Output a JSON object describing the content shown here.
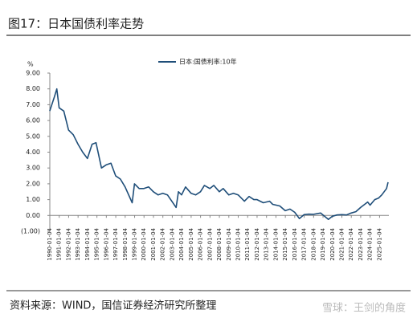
{
  "title": "图17：日本国债利率走势",
  "source": "资料来源：WIND，国信证券经济研究所整理",
  "watermark": "雪球：王剑的角度",
  "chart_data": {
    "type": "line",
    "y_unit": "%",
    "x": [
      "1990-01",
      "1990-07",
      "1990-10",
      "1991-01",
      "1991-07",
      "1992-01",
      "1992-07",
      "1993-01",
      "1993-07",
      "1994-01",
      "1994-07",
      "1994-12",
      "1995-07",
      "1996-01",
      "1996-07",
      "1997-01",
      "1997-07",
      "1998-01",
      "1998-10",
      "1999-01",
      "1999-07",
      "2000-01",
      "2000-07",
      "2001-01",
      "2001-07",
      "2002-01",
      "2002-07",
      "2003-06",
      "2003-09",
      "2004-01",
      "2004-06",
      "2005-01",
      "2005-07",
      "2006-01",
      "2006-06",
      "2007-01",
      "2007-06",
      "2008-01",
      "2008-06",
      "2009-01",
      "2009-07",
      "2010-01",
      "2010-09",
      "2011-03",
      "2011-09",
      "2012-01",
      "2012-09",
      "2013-05",
      "2013-09",
      "2014-06",
      "2015-01",
      "2015-07",
      "2016-01",
      "2016-07",
      "2017-01",
      "2017-07",
      "2018-01",
      "2018-10",
      "2019-08",
      "2020-01",
      "2020-07",
      "2021-01",
      "2021-07",
      "2022-01",
      "2022-07",
      "2023-01",
      "2023-10",
      "2024-01",
      "2024-07",
      "2024-12",
      "2025-04",
      "2025-07",
      "2025-10",
      "2025-12"
    ],
    "series": [
      {
        "name": "日本:国债利率:10年",
        "color": "#1f4e79",
        "values": [
          6.6,
          7.5,
          8.0,
          6.8,
          6.6,
          5.4,
          5.1,
          4.5,
          4.0,
          3.6,
          4.5,
          4.6,
          3.0,
          3.2,
          3.3,
          2.5,
          2.3,
          1.8,
          0.8,
          2.0,
          1.7,
          1.7,
          1.8,
          1.5,
          1.3,
          1.4,
          1.3,
          0.5,
          1.5,
          1.3,
          1.8,
          1.4,
          1.3,
          1.5,
          1.9,
          1.7,
          1.9,
          1.5,
          1.7,
          1.3,
          1.4,
          1.3,
          0.9,
          1.2,
          1.0,
          1.0,
          0.8,
          0.9,
          0.7,
          0.6,
          0.3,
          0.4,
          0.2,
          -0.2,
          0.05,
          0.08,
          0.07,
          0.15,
          -0.25,
          -0.05,
          0.03,
          0.05,
          0.03,
          0.15,
          0.24,
          0.5,
          0.85,
          0.65,
          1.0,
          1.1,
          1.3,
          1.5,
          1.7,
          2.1
        ]
      }
    ],
    "xlim": [
      "1990-01-04",
      "2025-12-31"
    ],
    "xticks": [
      "1990-01-04",
      "1991-01-04",
      "1992-01-04",
      "1993-01-04",
      "1994-01-04",
      "1995-01-04",
      "1996-01-04",
      "1997-01-04",
      "1998-01-04",
      "1999-01-04",
      "2000-01-04",
      "2001-01-04",
      "2002-01-04",
      "2003-01-04",
      "2004-01-04",
      "2005-01-04",
      "2006-01-04",
      "2007-01-04",
      "2008-01-04",
      "2009-01-04",
      "2010-01-04",
      "2011-01-04",
      "2012-01-04",
      "2013-01-04",
      "2014-01-04",
      "2015-01-04",
      "2016-01-04",
      "2017-01-04",
      "2018-01-04",
      "2019-01-04",
      "2020-01-04",
      "2021-01-04",
      "2022-01-04",
      "2023-01-04",
      "2024-01-04",
      "2025-01-04"
    ],
    "ylim": [
      -1,
      9
    ],
    "yticks": [
      {
        "value": 9,
        "label": "9.00"
      },
      {
        "value": 8,
        "label": "8.00"
      },
      {
        "value": 7,
        "label": "7.00"
      },
      {
        "value": 6,
        "label": "6.00"
      },
      {
        "value": 5,
        "label": "5.00"
      },
      {
        "value": 4,
        "label": "4.00"
      },
      {
        "value": 3,
        "label": "3.00"
      },
      {
        "value": 2,
        "label": "2.00"
      },
      {
        "value": 1,
        "label": "1.00"
      },
      {
        "value": 0,
        "label": "0.00"
      },
      {
        "value": -1,
        "label": "(1.00)"
      }
    ],
    "legend": "top"
  }
}
